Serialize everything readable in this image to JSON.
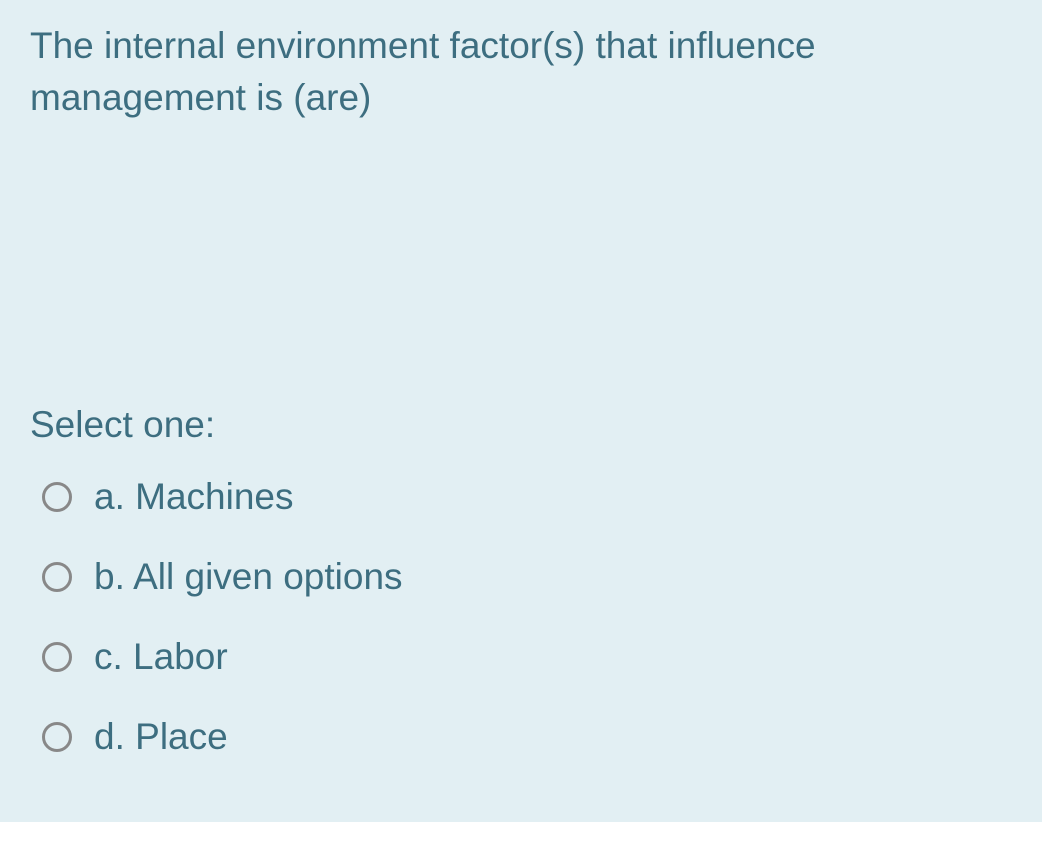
{
  "question": {
    "text": "The internal environment factor(s) that influence management is (are)",
    "select_label": "Select one:",
    "options": [
      {
        "key": "a",
        "label": "a. Machines"
      },
      {
        "key": "b",
        "label": "b. All given options"
      },
      {
        "key": "c",
        "label": "c. Labor"
      },
      {
        "key": "d",
        "label": "d. Place"
      }
    ]
  },
  "colors": {
    "background": "#e2eff3",
    "text": "#3d6e80",
    "radio_border": "#888888"
  }
}
